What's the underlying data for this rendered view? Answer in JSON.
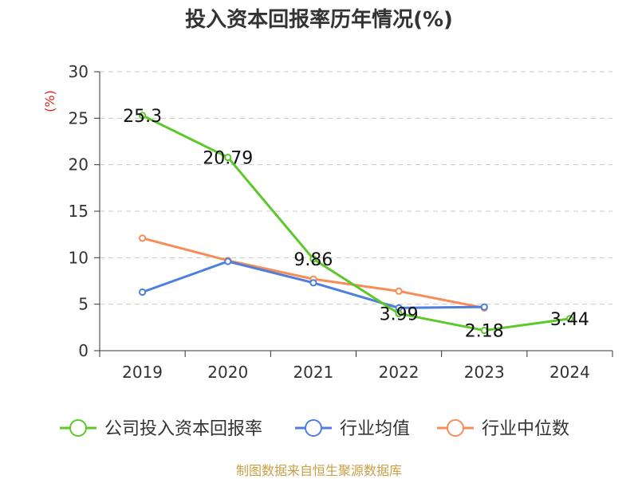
{
  "chart_data": {
    "type": "line",
    "title": "投入资本回报率历年情况(%)",
    "ylabel": "(%)",
    "xlabel": "",
    "categories": [
      "2019",
      "2020",
      "2021",
      "2022",
      "2023",
      "2024"
    ],
    "ylim": [
      0,
      30
    ],
    "yticks": [
      0,
      5,
      10,
      15,
      20,
      25,
      30
    ],
    "grid": true,
    "legend_position": "bottom",
    "series": [
      {
        "name": "公司投入资本回报率",
        "color": "#5cc82a",
        "values": [
          25.3,
          20.79,
          9.86,
          3.99,
          2.18,
          3.44
        ],
        "labels": [
          "25.3",
          "20.79",
          "9.86",
          "3.99",
          "2.18",
          "3.44"
        ]
      },
      {
        "name": "行业均值",
        "color": "#4e7fdc",
        "values": [
          6.3,
          9.6,
          7.3,
          4.6,
          4.7,
          null
        ]
      },
      {
        "name": "行业中位数",
        "color": "#f68c58",
        "values": [
          12.1,
          9.7,
          7.7,
          6.4,
          4.6,
          null
        ]
      }
    ]
  },
  "source": "制图数据来自恒生聚源数据库"
}
